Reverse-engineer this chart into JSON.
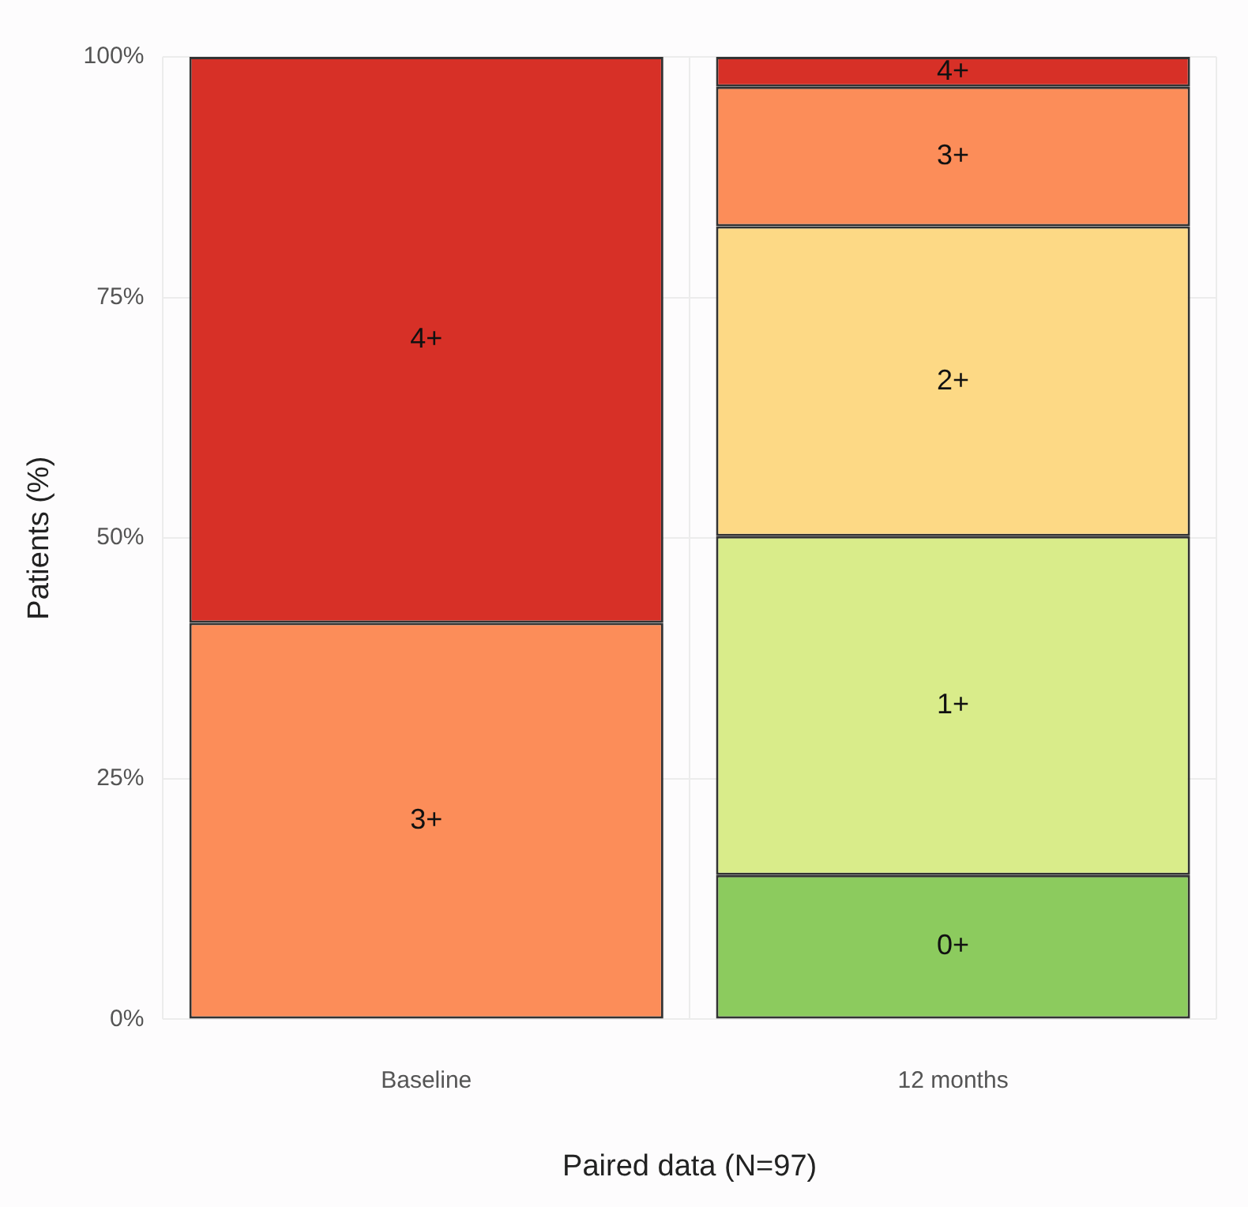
{
  "chart_data": {
    "type": "bar",
    "stacked": true,
    "xlabel": "Paired data (N=97)",
    "ylabel": "Patients (%)",
    "categories": [
      "Baseline",
      "12 months"
    ],
    "series": [
      {
        "name": "0+",
        "color": "#8ccb5e",
        "values": [
          null,
          15.0
        ]
      },
      {
        "name": "1+",
        "color": "#d9ec8a",
        "values": [
          null,
          35.2
        ]
      },
      {
        "name": "2+",
        "color": "#fdd985",
        "values": [
          null,
          32.2
        ]
      },
      {
        "name": "3+",
        "color": "#fc8d59",
        "values": [
          41.2,
          14.5
        ]
      },
      {
        "name": "4+",
        "color": "#d73027",
        "values": [
          58.8,
          3.1
        ]
      }
    ],
    "ylim": [
      0,
      100
    ],
    "yticks": [
      {
        "value": 0,
        "label": "0%"
      },
      {
        "value": 25,
        "label": "25%"
      },
      {
        "value": 50,
        "label": "50%"
      },
      {
        "value": 75,
        "label": "75%"
      },
      {
        "value": 100,
        "label": "100%"
      }
    ],
    "grid": true,
    "legend": false
  }
}
